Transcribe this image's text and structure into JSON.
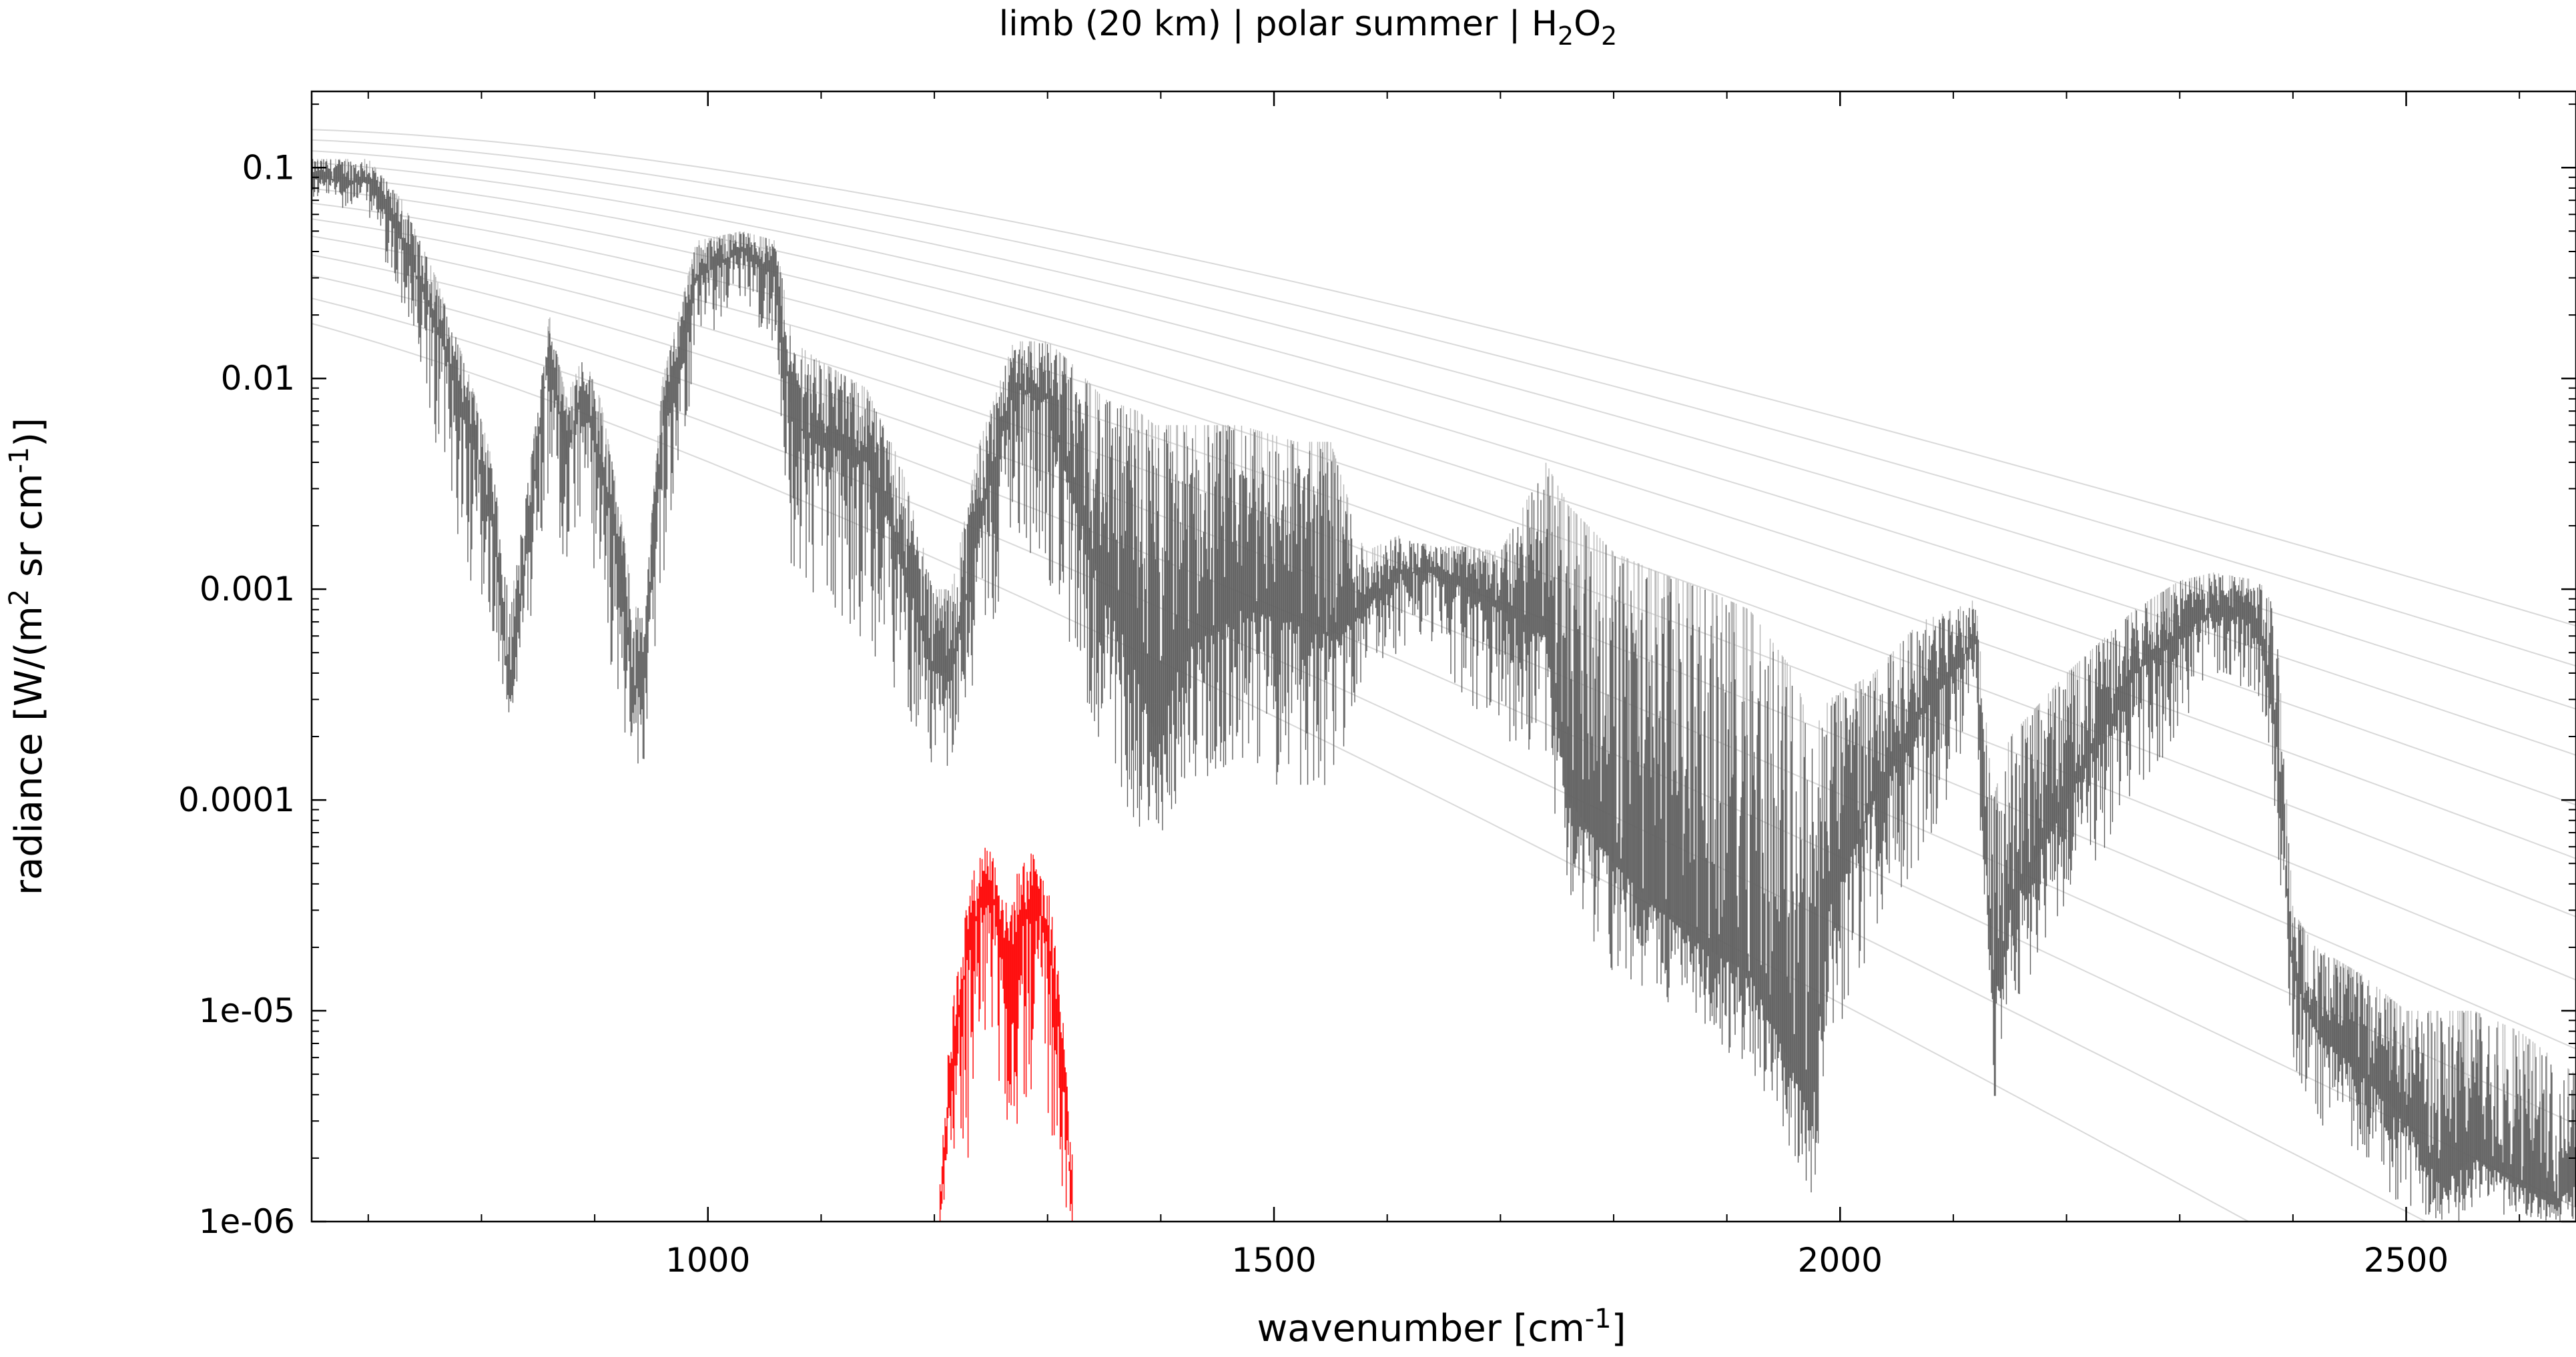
{
  "chart_data": {
    "type": "line",
    "title": "limb (20 km) | polar summer | H2O2",
    "title_parts": {
      "prefix": "limb (20 km) | polar summer | H",
      "sub1": "2",
      "mid": "O",
      "sub2": "2"
    },
    "xlabel": "wavenumber [cm-1]",
    "xlabel_parts": {
      "prefix": "wavenumber [cm",
      "sup": "-1",
      "suffix": "]"
    },
    "ylabel": "radiance [W/(m2 sr cm-1)]",
    "ylabel_parts": {
      "a": "radiance [W/(m",
      "sup1": "2",
      "b": " sr cm",
      "sup2": "-1",
      "c": ")]"
    },
    "xlim": [
      650,
      2650
    ],
    "ylim": [
      1e-06,
      0.23
    ],
    "yscale": "log",
    "grid": false,
    "x_ticks": [
      1000,
      1500,
      2000,
      2500
    ],
    "x_tick_labels": [
      "1000",
      "1500",
      "2000",
      "2500"
    ],
    "y_ticks": [
      0.1,
      0.01,
      0.001,
      0.0001,
      1e-05,
      1e-06
    ],
    "y_tick_labels": [
      "0.1",
      "0.01",
      "0.001",
      "0.0001",
      "1e-05",
      "1e-06"
    ],
    "colors": {
      "total": "#606060",
      "total_light": "#b8b8b8",
      "target": "#ff0000",
      "planck": "#d9d9d9"
    },
    "planck_temperatures_K": [
      180,
      190,
      200,
      210,
      220,
      230,
      240,
      250,
      260,
      270,
      280,
      290,
      300
    ],
    "series": [
      {
        "role": "total",
        "x": [
          650,
          700,
          730,
          760,
          790,
          810,
          825,
          840,
          860,
          875,
          890,
          905,
          920,
          935,
          945,
          960,
          990,
          1030,
          1060,
          1075,
          1100,
          1140,
          1170,
          1200,
          1215,
          1240,
          1270,
          1300,
          1320,
          1350,
          1380,
          1395,
          1420,
          1470,
          1520,
          1550,
          1580,
          1610,
          1640,
          1670,
          1700,
          1740,
          1760,
          1800,
          1840,
          1880,
          1920,
          1960,
          1975,
          1990,
          2030,
          2070,
          2100,
          2120,
          2135,
          2150,
          2200,
          2260,
          2300,
          2330,
          2370,
          2385,
          2400,
          2420,
          2460,
          2500,
          2530,
          2560,
          2600,
          2630,
          2650
        ],
        "y_center": [
          0.09,
          0.085,
          0.045,
          0.018,
          0.006,
          0.002,
          0.0003,
          0.0015,
          0.014,
          0.004,
          0.009,
          0.004,
          0.0015,
          0.0003,
          0.0005,
          0.006,
          0.03,
          0.04,
          0.03,
          0.006,
          0.005,
          0.004,
          0.0015,
          0.0004,
          0.0004,
          0.002,
          0.009,
          0.008,
          0.003,
          0.001,
          0.0004,
          0.0002,
          0.0005,
          0.0008,
          0.0007,
          0.0006,
          0.0008,
          0.0012,
          0.0012,
          0.001,
          0.0008,
          0.0006,
          0.0001,
          5e-05,
          3e-05,
          2e-05,
          1.5e-05,
          5e-06,
          3e-06,
          3e-05,
          0.0001,
          0.00025,
          0.0004,
          0.0006,
          1e-05,
          3e-05,
          0.0001,
          0.0004,
          0.0006,
          0.0008,
          0.0007,
          0.0002,
          1.5e-05,
          8e-06,
          5e-06,
          3e-06,
          1.5e-06,
          2e-06,
          1.5e-06,
          1.2e-06,
          1.5e-06
        ],
        "y_high": [
          0.11,
          0.11,
          0.07,
          0.03,
          0.01,
          0.004,
          0.0008,
          0.003,
          0.02,
          0.008,
          0.013,
          0.008,
          0.003,
          0.0008,
          0.001,
          0.01,
          0.045,
          0.05,
          0.045,
          0.015,
          0.012,
          0.009,
          0.004,
          0.001,
          0.001,
          0.005,
          0.015,
          0.015,
          0.012,
          0.008,
          0.007,
          0.006,
          0.006,
          0.006,
          0.005,
          0.005,
          0.0015,
          0.0018,
          0.0016,
          0.0016,
          0.0015,
          0.004,
          0.0025,
          0.0015,
          0.0012,
          0.001,
          0.0008,
          0.0004,
          0.0002,
          0.0003,
          0.0004,
          0.0007,
          0.0008,
          0.0009,
          0.0001,
          0.0002,
          0.0004,
          0.0008,
          0.0011,
          0.0012,
          0.0011,
          0.0008,
          3e-05,
          2e-05,
          1.5e-05,
          1e-05,
          1e-05,
          1e-05,
          8e-06,
          6e-06,
          5e-06
        ],
        "y_low": [
          0.07,
          0.06,
          0.02,
          0.004,
          0.001,
          0.0005,
          0.00025,
          0.0005,
          0.002,
          0.001,
          0.002,
          0.0008,
          0.0003,
          0.0001,
          0.00015,
          0.001,
          0.012,
          0.025,
          0.012,
          0.001,
          0.0008,
          0.0005,
          0.0003,
          0.00012,
          0.00015,
          0.0003,
          0.002,
          0.001,
          0.0005,
          0.00015,
          7e-05,
          6e-05,
          0.0001,
          0.00015,
          0.0001,
          0.0001,
          0.0004,
          0.0005,
          0.0005,
          0.0003,
          0.0002,
          0.00015,
          3e-05,
          1.5e-05,
          1e-05,
          8e-06,
          5e-06,
          2e-06,
          1e-06,
          5e-06,
          2e-05,
          5e-05,
          0.0001,
          0.0002,
          3e-06,
          8e-06,
          3e-05,
          0.0001,
          0.0002,
          0.0004,
          0.0003,
          8e-05,
          5e-06,
          3e-06,
          2e-06,
          1e-06,
          1e-06,
          1e-06,
          1e-06,
          1e-06,
          1e-06
        ]
      },
      {
        "role": "target",
        "x": [
          1205,
          1215,
          1230,
          1245,
          1255,
          1265,
          1275,
          1290,
          1305,
          1315,
          1322
        ],
        "y_center": [
          1e-06,
          5e-06,
          2e-05,
          4e-05,
          3e-05,
          1.5e-05,
          2.5e-05,
          3.5e-05,
          1.5e-05,
          4e-06,
          1e-06
        ],
        "y_high": [
          2e-06,
          1e-05,
          4e-05,
          6.5e-05,
          5.5e-05,
          3e-05,
          5e-05,
          6e-05,
          3e-05,
          8e-06,
          2e-06
        ],
        "y_low": [
          1e-06,
          1e-06,
          2e-06,
          5e-06,
          4e-06,
          2e-06,
          3e-06,
          4e-06,
          2e-06,
          1e-06,
          1e-06
        ]
      }
    ]
  }
}
